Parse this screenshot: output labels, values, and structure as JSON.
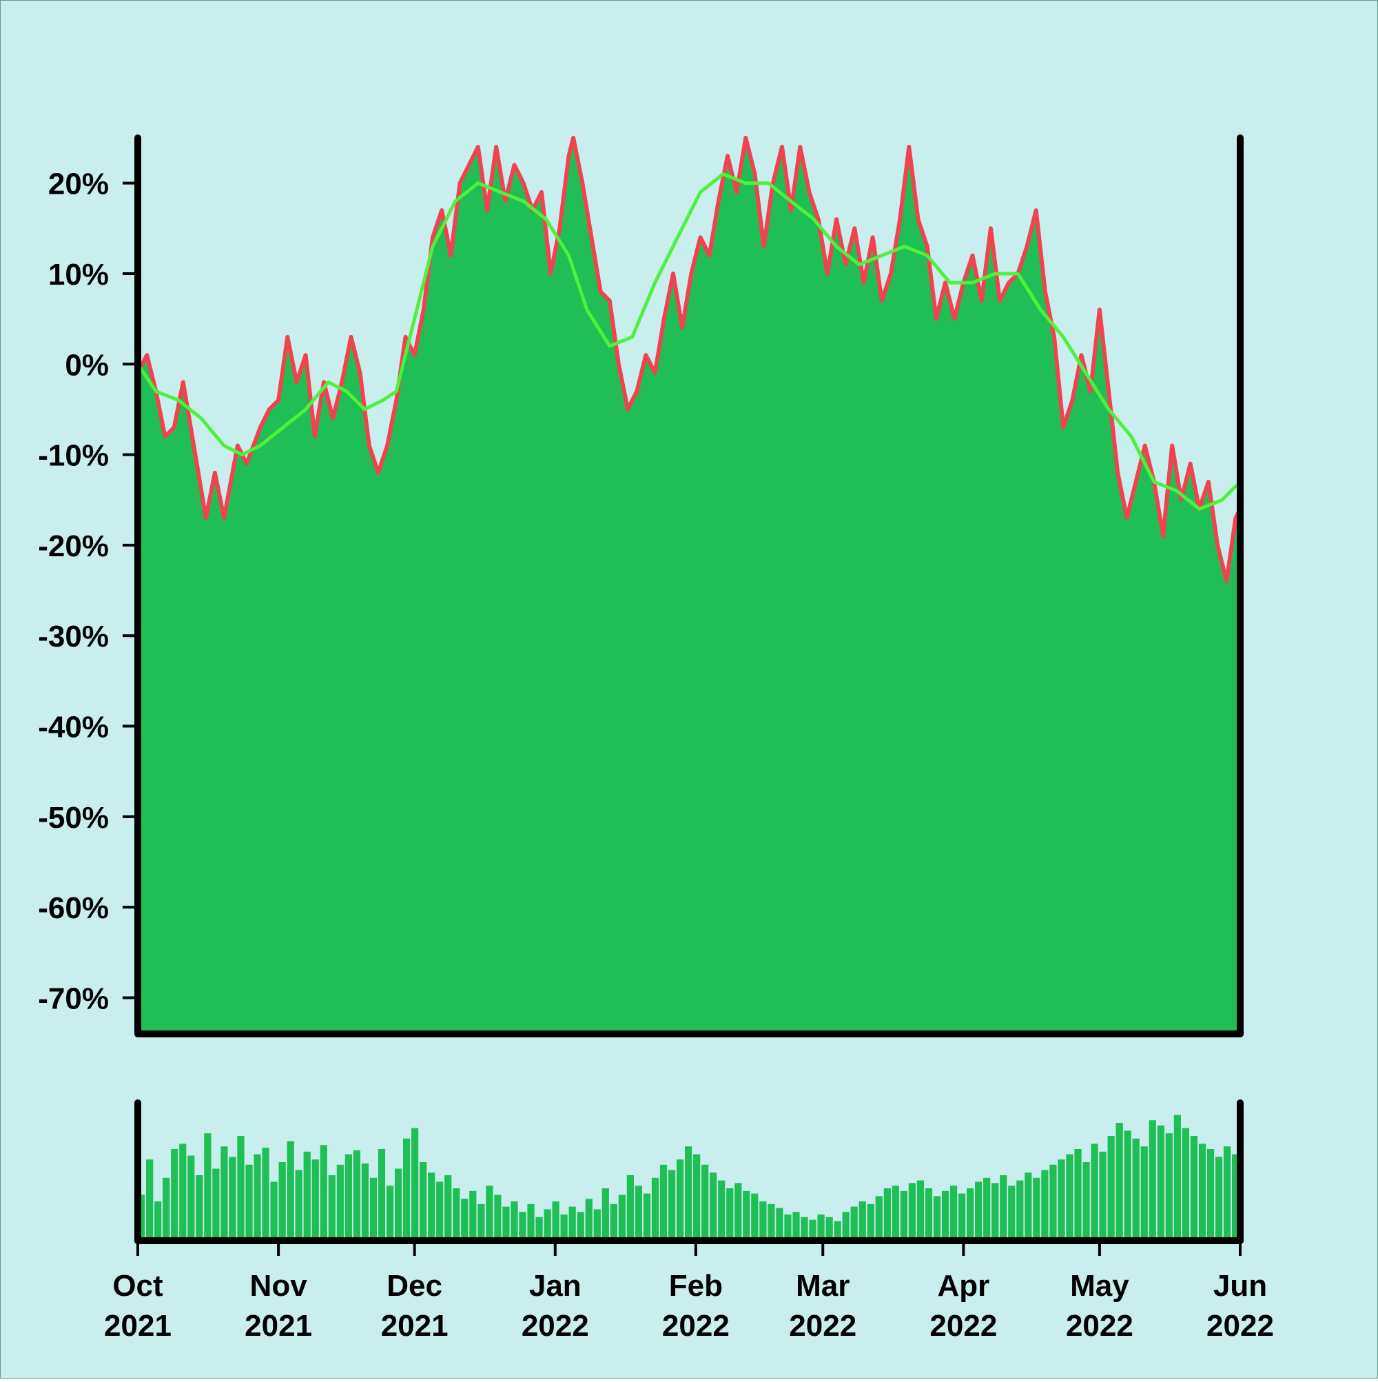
{
  "colors": {
    "background": "#c9eeee",
    "area_fill": "#20bf55",
    "price_line": "#f0434f",
    "moving_average": "#4ff03e",
    "volume_bars": "#20bf55",
    "axes": "#000000"
  },
  "chart_data": {
    "type": "area",
    "title": "",
    "xlabel": "",
    "ylabel": "",
    "ylim": [
      -74,
      25
    ],
    "y_ticks": [
      20,
      10,
      0,
      -10,
      -20,
      -30,
      -40,
      -50,
      -60,
      -70
    ],
    "y_tick_labels": [
      "20%",
      "10%",
      "0%",
      "-10%",
      "-20%",
      "-30%",
      "-40%",
      "-50%",
      "-60%",
      "-70%"
    ],
    "x_range": [
      "2021-10-01",
      "2022-06-01"
    ],
    "x_ticks": [
      {
        "date": "2021-10-01",
        "month": "Oct",
        "year": "2021"
      },
      {
        "date": "2021-11-01",
        "month": "Nov",
        "year": "2021"
      },
      {
        "date": "2021-12-01",
        "month": "Dec",
        "year": "2021"
      },
      {
        "date": "2022-01-01",
        "month": "Jan",
        "year": "2022"
      },
      {
        "date": "2022-02-01",
        "month": "Feb",
        "year": "2022"
      },
      {
        "date": "2022-03-01",
        "month": "Mar",
        "year": "2022"
      },
      {
        "date": "2022-04-01",
        "month": "Apr",
        "year": "2022"
      },
      {
        "date": "2022-05-01",
        "month": "May",
        "year": "2022"
      },
      {
        "date": "2022-06-01",
        "month": "Jun",
        "year": "2022"
      }
    ],
    "grid": false,
    "legend": "none",
    "series": [
      {
        "values": [
          [
            "2021-10-01",
            -1
          ],
          [
            "2021-10-03",
            1
          ],
          [
            "2021-10-05",
            -3
          ],
          [
            "2021-10-07",
            -8
          ],
          [
            "2021-10-09",
            -7
          ],
          [
            "2021-10-11",
            -2
          ],
          [
            "2021-10-13",
            -8
          ],
          [
            "2021-10-16",
            -17
          ],
          [
            "2021-10-18",
            -12
          ],
          [
            "2021-10-20",
            -17
          ],
          [
            "2021-10-23",
            -9
          ],
          [
            "2021-10-25",
            -11
          ],
          [
            "2021-10-28",
            -7
          ],
          [
            "2021-10-30",
            -5
          ],
          [
            "2021-11-01",
            -4
          ],
          [
            "2021-11-03",
            3
          ],
          [
            "2021-11-05",
            -2
          ],
          [
            "2021-11-07",
            1
          ],
          [
            "2021-11-09",
            -8
          ],
          [
            "2021-11-11",
            -2
          ],
          [
            "2021-11-13",
            -6
          ],
          [
            "2021-11-15",
            -2
          ],
          [
            "2021-11-17",
            3
          ],
          [
            "2021-11-19",
            -1
          ],
          [
            "2021-11-21",
            -9
          ],
          [
            "2021-11-23",
            -12
          ],
          [
            "2021-11-25",
            -9
          ],
          [
            "2021-11-27",
            -4
          ],
          [
            "2021-11-29",
            3
          ],
          [
            "2021-12-01",
            1
          ],
          [
            "2021-12-03",
            6
          ],
          [
            "2021-12-05",
            14
          ],
          [
            "2021-12-07",
            17
          ],
          [
            "2021-12-09",
            12
          ],
          [
            "2021-12-11",
            20
          ],
          [
            "2021-12-13",
            22
          ],
          [
            "2021-12-15",
            24
          ],
          [
            "2021-12-17",
            17
          ],
          [
            "2021-12-19",
            24
          ],
          [
            "2021-12-21",
            18
          ],
          [
            "2021-12-23",
            22
          ],
          [
            "2021-12-25",
            20
          ],
          [
            "2021-12-27",
            17
          ],
          [
            "2021-12-29",
            19
          ],
          [
            "2021-12-31",
            10
          ],
          [
            "2022-01-02",
            15
          ],
          [
            "2022-01-04",
            23
          ],
          [
            "2022-01-05",
            25
          ],
          [
            "2022-01-07",
            20
          ],
          [
            "2022-01-09",
            14
          ],
          [
            "2022-01-11",
            8
          ],
          [
            "2022-01-13",
            7
          ],
          [
            "2022-01-15",
            0
          ],
          [
            "2022-01-17",
            -5
          ],
          [
            "2022-01-19",
            -3
          ],
          [
            "2022-01-21",
            1
          ],
          [
            "2022-01-23",
            -1
          ],
          [
            "2022-01-25",
            5
          ],
          [
            "2022-01-27",
            10
          ],
          [
            "2022-01-29",
            4
          ],
          [
            "2022-01-31",
            10
          ],
          [
            "2022-02-02",
            14
          ],
          [
            "2022-02-04",
            12
          ],
          [
            "2022-02-06",
            18
          ],
          [
            "2022-02-08",
            23
          ],
          [
            "2022-02-10",
            19
          ],
          [
            "2022-02-12",
            25
          ],
          [
            "2022-02-14",
            21
          ],
          [
            "2022-02-16",
            13
          ],
          [
            "2022-02-18",
            20
          ],
          [
            "2022-02-20",
            24
          ],
          [
            "2022-02-22",
            17
          ],
          [
            "2022-02-24",
            24
          ],
          [
            "2022-02-26",
            19
          ],
          [
            "2022-02-28",
            16
          ],
          [
            "2022-03-02",
            10
          ],
          [
            "2022-03-04",
            16
          ],
          [
            "2022-03-06",
            11
          ],
          [
            "2022-03-08",
            15
          ],
          [
            "2022-03-10",
            9
          ],
          [
            "2022-03-12",
            14
          ],
          [
            "2022-03-14",
            7
          ],
          [
            "2022-03-16",
            10
          ],
          [
            "2022-03-18",
            16
          ],
          [
            "2022-03-20",
            24
          ],
          [
            "2022-03-22",
            16
          ],
          [
            "2022-03-24",
            13
          ],
          [
            "2022-03-26",
            5
          ],
          [
            "2022-03-28",
            9
          ],
          [
            "2022-03-30",
            5
          ],
          [
            "2022-04-01",
            9
          ],
          [
            "2022-04-03",
            12
          ],
          [
            "2022-04-05",
            7
          ],
          [
            "2022-04-07",
            15
          ],
          [
            "2022-04-09",
            7
          ],
          [
            "2022-04-11",
            9
          ],
          [
            "2022-04-13",
            10
          ],
          [
            "2022-04-15",
            13
          ],
          [
            "2022-04-17",
            17
          ],
          [
            "2022-04-19",
            8
          ],
          [
            "2022-04-21",
            3
          ],
          [
            "2022-04-23",
            -7
          ],
          [
            "2022-04-25",
            -4
          ],
          [
            "2022-04-27",
            1
          ],
          [
            "2022-04-29",
            -3
          ],
          [
            "2022-05-01",
            6
          ],
          [
            "2022-05-03",
            -3
          ],
          [
            "2022-05-05",
            -12
          ],
          [
            "2022-05-07",
            -17
          ],
          [
            "2022-05-09",
            -13
          ],
          [
            "2022-05-11",
            -9
          ],
          [
            "2022-05-13",
            -13
          ],
          [
            "2022-05-15",
            -19
          ],
          [
            "2022-05-17",
            -9
          ],
          [
            "2022-05-19",
            -15
          ],
          [
            "2022-05-21",
            -11
          ],
          [
            "2022-05-23",
            -16
          ],
          [
            "2022-05-25",
            -13
          ],
          [
            "2022-05-27",
            -20
          ],
          [
            "2022-05-29",
            -24
          ],
          [
            "2022-05-31",
            -17
          ],
          [
            "2022-06-01",
            -16
          ]
        ]
      },
      {
        "values": [
          [
            "2021-10-01",
            0
          ],
          [
            "2021-10-05",
            -3
          ],
          [
            "2021-10-10",
            -4
          ],
          [
            "2021-10-15",
            -6
          ],
          [
            "2021-10-20",
            -9
          ],
          [
            "2021-10-24",
            -10
          ],
          [
            "2021-10-28",
            -9
          ],
          [
            "2021-11-02",
            -7
          ],
          [
            "2021-11-07",
            -5
          ],
          [
            "2021-11-12",
            -2
          ],
          [
            "2021-11-16",
            -3
          ],
          [
            "2021-11-20",
            -5
          ],
          [
            "2021-11-24",
            -4
          ],
          [
            "2021-11-27",
            -3
          ],
          [
            "2021-12-01",
            5
          ],
          [
            "2021-12-05",
            13
          ],
          [
            "2021-12-10",
            18
          ],
          [
            "2021-12-15",
            20
          ],
          [
            "2021-12-20",
            19
          ],
          [
            "2021-12-25",
            18
          ],
          [
            "2021-12-30",
            16
          ],
          [
            "2022-01-04",
            12
          ],
          [
            "2022-01-08",
            6
          ],
          [
            "2022-01-13",
            2
          ],
          [
            "2022-01-18",
            3
          ],
          [
            "2022-01-23",
            9
          ],
          [
            "2022-01-28",
            14
          ],
          [
            "2022-02-02",
            19
          ],
          [
            "2022-02-07",
            21
          ],
          [
            "2022-02-12",
            20
          ],
          [
            "2022-02-17",
            20
          ],
          [
            "2022-02-22",
            18
          ],
          [
            "2022-02-27",
            16
          ],
          [
            "2022-03-04",
            13
          ],
          [
            "2022-03-09",
            11
          ],
          [
            "2022-03-14",
            12
          ],
          [
            "2022-03-19",
            13
          ],
          [
            "2022-03-24",
            12
          ],
          [
            "2022-03-29",
            9
          ],
          [
            "2022-04-03",
            9
          ],
          [
            "2022-04-08",
            10
          ],
          [
            "2022-04-13",
            10
          ],
          [
            "2022-04-18",
            6
          ],
          [
            "2022-04-23",
            3
          ],
          [
            "2022-04-28",
            -1
          ],
          [
            "2022-05-03",
            -5
          ],
          [
            "2022-05-08",
            -8
          ],
          [
            "2022-05-13",
            -13
          ],
          [
            "2022-05-18",
            -14
          ],
          [
            "2022-05-23",
            -16
          ],
          [
            "2022-05-28",
            -15
          ],
          [
            "2022-06-01",
            -13
          ]
        ]
      }
    ],
    "volume": {
      "type": "bar",
      "note": "unlabeled volume panel",
      "values": [
        0.35,
        0.62,
        0.3,
        0.48,
        0.7,
        0.74,
        0.65,
        0.5,
        0.82,
        0.55,
        0.72,
        0.64,
        0.8,
        0.58,
        0.66,
        0.71,
        0.45,
        0.6,
        0.76,
        0.54,
        0.68,
        0.62,
        0.73,
        0.5,
        0.58,
        0.66,
        0.69,
        0.59,
        0.48,
        0.7,
        0.42,
        0.55,
        0.78,
        0.86,
        0.6,
        0.52,
        0.45,
        0.5,
        0.4,
        0.32,
        0.38,
        0.28,
        0.42,
        0.35,
        0.26,
        0.3,
        0.22,
        0.28,
        0.18,
        0.24,
        0.3,
        0.2,
        0.26,
        0.22,
        0.32,
        0.24,
        0.4,
        0.28,
        0.35,
        0.5,
        0.42,
        0.36,
        0.48,
        0.58,
        0.54,
        0.62,
        0.72,
        0.66,
        0.58,
        0.52,
        0.46,
        0.4,
        0.44,
        0.38,
        0.36,
        0.3,
        0.28,
        0.25,
        0.2,
        0.22,
        0.18,
        0.16,
        0.2,
        0.18,
        0.15,
        0.22,
        0.26,
        0.3,
        0.28,
        0.34,
        0.4,
        0.42,
        0.38,
        0.44,
        0.46,
        0.4,
        0.34,
        0.38,
        0.42,
        0.36,
        0.4,
        0.45,
        0.48,
        0.44,
        0.5,
        0.42,
        0.46,
        0.52,
        0.48,
        0.54,
        0.58,
        0.62,
        0.66,
        0.7,
        0.6,
        0.74,
        0.68,
        0.8,
        0.9,
        0.84,
        0.78,
        0.72,
        0.92,
        0.88,
        0.82,
        0.96,
        0.86,
        0.8,
        0.74,
        0.7,
        0.64,
        0.72,
        0.66
      ]
    }
  }
}
